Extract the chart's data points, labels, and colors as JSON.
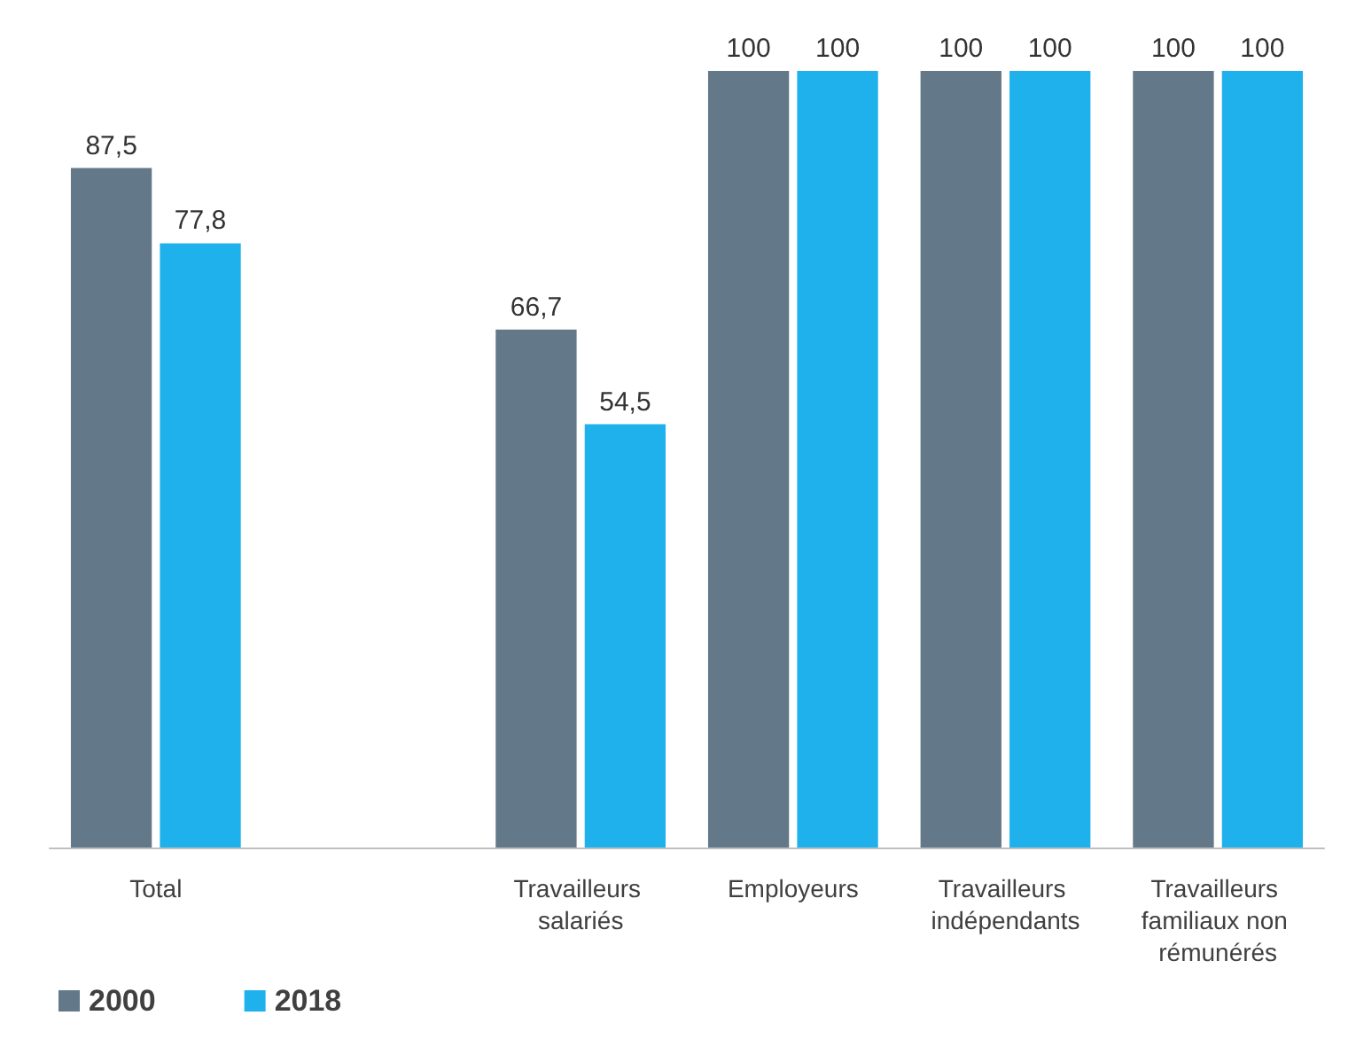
{
  "chart_data": {
    "type": "bar",
    "categories": [
      "Total",
      null,
      "Travailleurs salariés",
      "Employeurs",
      "Travailleurs indépendants",
      "Travailleurs familiaux non rémunérés"
    ],
    "series": [
      {
        "name": "2000",
        "color": "#637888",
        "values": [
          87.5,
          null,
          66.7,
          100,
          100,
          100
        ],
        "value_labels": [
          "87,5",
          null,
          "66,7",
          "100",
          "100",
          "100"
        ]
      },
      {
        "name": "2018",
        "color": "#1eb1ec",
        "values": [
          77.8,
          null,
          54.5,
          100,
          100,
          100
        ],
        "value_labels": [
          "77,8",
          null,
          "54,5",
          "100",
          "100",
          "100"
        ]
      }
    ],
    "legend": "bottom left"
  }
}
